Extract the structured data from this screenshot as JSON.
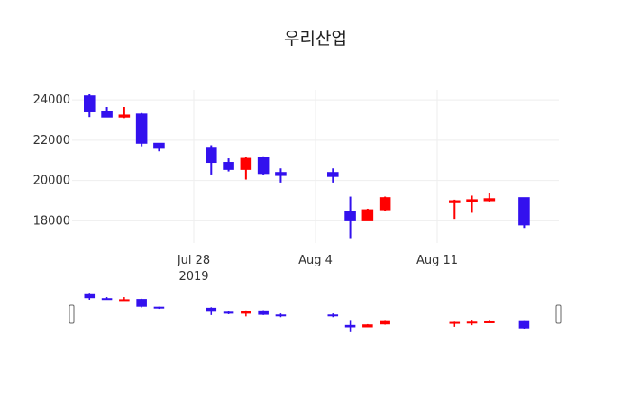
{
  "chart_data": {
    "type": "candlestick",
    "title": "우리산업",
    "xlabel": "",
    "ylabel": "",
    "year_label": "2019",
    "x_ticks": [
      {
        "date": "2019-07-28",
        "label": "Jul 28"
      },
      {
        "date": "2019-08-04",
        "label": "Aug 4"
      },
      {
        "date": "2019-08-11",
        "label": "Aug 11"
      }
    ],
    "y_ticks": [
      18000,
      20000,
      22000,
      24000
    ],
    "xlim": [
      "2019-07-21",
      "2019-08-18"
    ],
    "ylim": [
      16900,
      24500
    ],
    "grid": true,
    "rangeslider": true,
    "increasing_color": "#ff0000",
    "decreasing_color": "#3311ee",
    "candles": [
      {
        "date": "2019-07-22",
        "open": 24200,
        "high": 24300,
        "low": 23150,
        "close": 23450
      },
      {
        "date": "2019-07-23",
        "open": 23450,
        "high": 23650,
        "low": 23150,
        "close": 23150
      },
      {
        "date": "2019-07-24",
        "open": 23150,
        "high": 23650,
        "low": 23100,
        "close": 23250
      },
      {
        "date": "2019-07-25",
        "open": 23300,
        "high": 23350,
        "low": 21700,
        "close": 21850
      },
      {
        "date": "2019-07-26",
        "open": 21850,
        "high": 21850,
        "low": 21450,
        "close": 21600
      },
      {
        "date": "2019-07-29",
        "open": 21650,
        "high": 21750,
        "low": 20300,
        "close": 20900
      },
      {
        "date": "2019-07-30",
        "open": 20900,
        "high": 21100,
        "low": 20450,
        "close": 20550
      },
      {
        "date": "2019-07-31",
        "open": 20550,
        "high": 21150,
        "low": 20050,
        "close": 21100
      },
      {
        "date": "2019-08-01",
        "open": 21150,
        "high": 21200,
        "low": 20300,
        "close": 20350
      },
      {
        "date": "2019-08-02",
        "open": 20400,
        "high": 20600,
        "low": 19900,
        "close": 20250
      },
      {
        "date": "2019-08-05",
        "open": 20400,
        "high": 20600,
        "low": 19900,
        "close": 20200
      },
      {
        "date": "2019-08-06",
        "open": 18450,
        "high": 19200,
        "low": 17100,
        "close": 18000
      },
      {
        "date": "2019-08-07",
        "open": 18000,
        "high": 18600,
        "low": 18000,
        "close": 18550
      },
      {
        "date": "2019-08-08",
        "open": 18550,
        "high": 19200,
        "low": 18500,
        "close": 19150
      },
      {
        "date": "2019-08-12",
        "open": 18900,
        "high": 19050,
        "low": 18100,
        "close": 19000
      },
      {
        "date": "2019-08-13",
        "open": 18950,
        "high": 19250,
        "low": 18400,
        "close": 19050
      },
      {
        "date": "2019-08-14",
        "open": 19000,
        "high": 19400,
        "low": 18950,
        "close": 19100
      },
      {
        "date": "2019-08-16",
        "open": 19150,
        "high": 19150,
        "low": 17650,
        "close": 17800
      }
    ]
  }
}
